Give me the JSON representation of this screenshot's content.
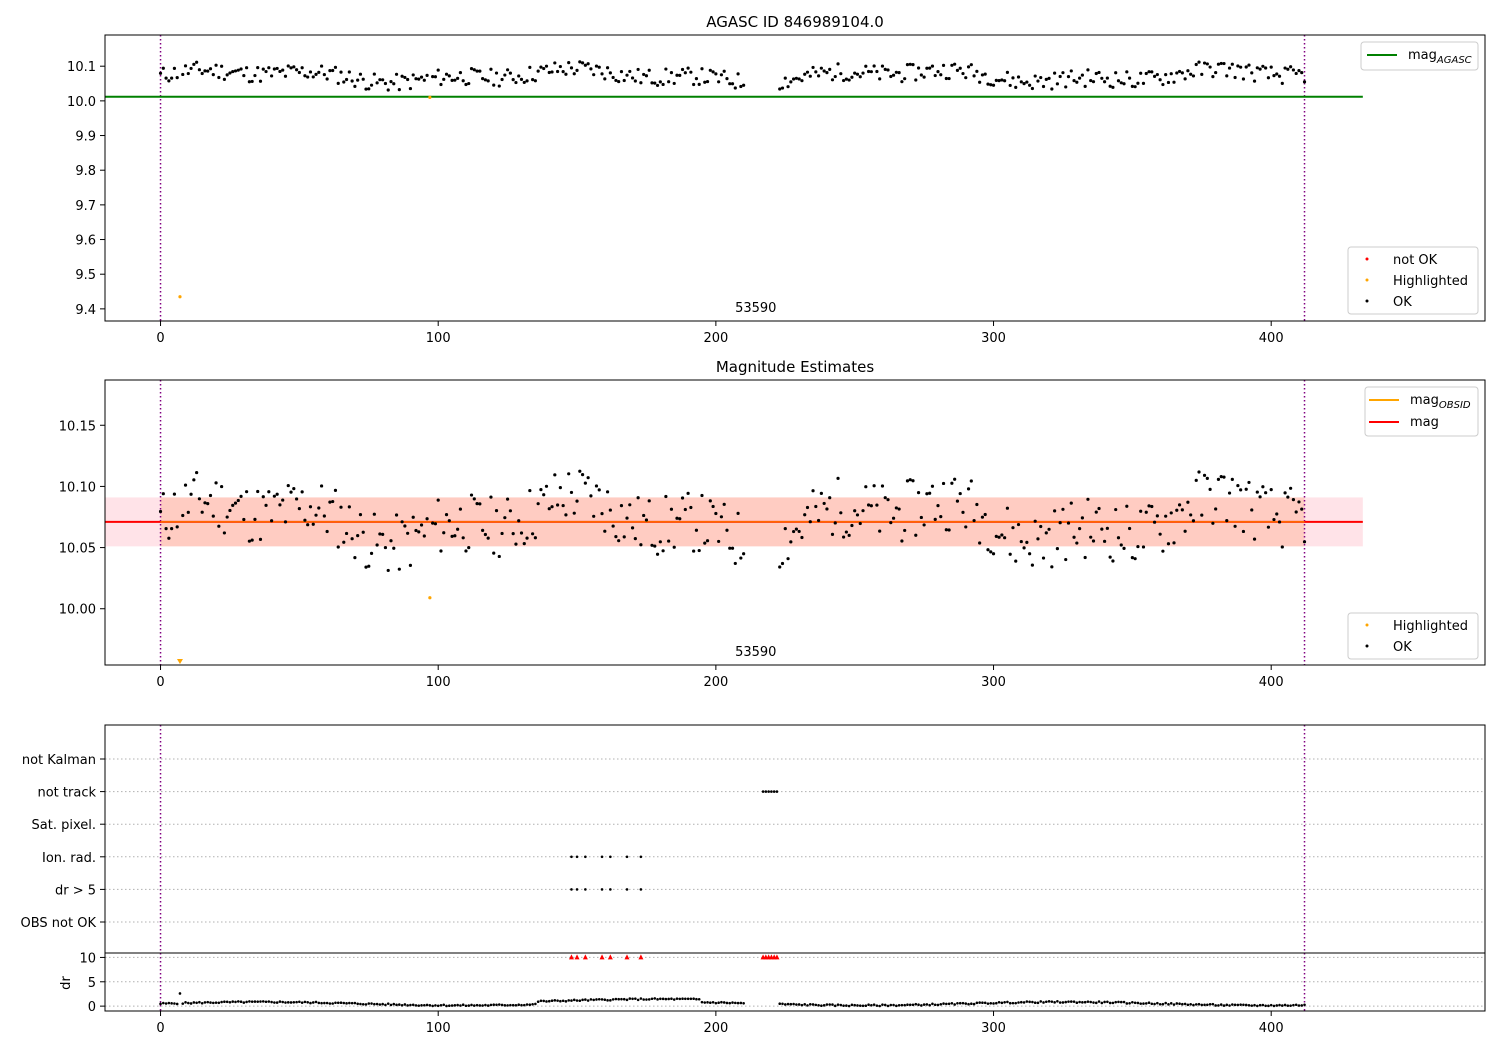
{
  "chart_data": [
    {
      "type": "scatter",
      "title": "AGASC ID 846989104.0",
      "xlim": [
        -20,
        477
      ],
      "ylim": [
        9.365,
        10.19
      ],
      "xticks": [
        0,
        100,
        200,
        300,
        400
      ],
      "yticks": [
        9.4,
        9.5,
        9.6,
        9.7,
        9.8,
        9.9,
        10.0,
        10.1
      ],
      "ytick_labels": [
        "9.4",
        "9.5",
        "9.6",
        "9.7",
        "9.8",
        "9.9",
        "10.0",
        "10.1"
      ],
      "vlines": [
        0,
        412
      ],
      "hline": {
        "name": "mag_AGASC",
        "value": 10.012,
        "xmax": 433,
        "color": "#008000"
      },
      "highlighted": [
        {
          "x": 7,
          "y": 9.435
        },
        {
          "x": 97,
          "y": 10.01
        }
      ],
      "center_annotation": {
        "text": "53590",
        "x": 205
      },
      "series_seed": 11,
      "legend_lines": [
        {
          "label": "mag",
          "sub": "AGASC",
          "color": "#008000"
        }
      ],
      "legend_points": [
        {
          "label": "not OK",
          "color": "#ff0000"
        },
        {
          "label": "Highlighted",
          "color": "#ffa500"
        },
        {
          "label": "OK",
          "color": "#000000"
        }
      ]
    },
    {
      "type": "scatter",
      "title": "Magnitude Estimates",
      "xlim": [
        -20,
        477
      ],
      "ylim": [
        9.954,
        10.187
      ],
      "xticks": [
        0,
        100,
        200,
        300,
        400
      ],
      "yticks": [
        10.0,
        10.05,
        10.1,
        10.15
      ],
      "ytick_labels": [
        "10.00",
        "10.05",
        "10.10",
        "10.15"
      ],
      "vlines": [
        0,
        412
      ],
      "mag": 10.071,
      "band_outer": [
        10.051,
        10.091
      ],
      "band_inner": [
        10.051,
        10.091
      ],
      "xmax": 433,
      "highlighted": [
        {
          "x": 97,
          "y": 10.009
        }
      ],
      "offscale_marker": {
        "x": 7
      },
      "center_annotation": {
        "text": "53590",
        "x": 205
      },
      "series_seed": 11,
      "legend_lines": [
        {
          "label": "mag",
          "sub": "OBSID",
          "color": "#ffa500"
        },
        {
          "label": "mag",
          "sub": "",
          "color": "#ff0000"
        }
      ],
      "legend_points": [
        {
          "label": "Highlighted",
          "color": "#ffa500"
        },
        {
          "label": "OK",
          "color": "#000000"
        }
      ]
    },
    {
      "type": "scatter",
      "title": "",
      "xlim": [
        -20,
        477
      ],
      "xticks": [
        0,
        100,
        200,
        300,
        400
      ],
      "vlines": [
        0,
        412
      ],
      "flag_rows": [
        "not Kalman",
        "not track",
        "Sat. pixel.",
        "Ion. rad.",
        "dr > 5",
        "OBS not OK"
      ],
      "flags": {
        "not Kalman": [],
        "not track": [
          217,
          218,
          219,
          220,
          221,
          222
        ],
        "Sat. pixel.": [],
        "Ion. rad.": [
          148,
          150,
          153,
          159,
          162,
          168,
          173
        ],
        "dr > 5": [
          148,
          150,
          153,
          159,
          162,
          168,
          173
        ],
        "OBS not OK": []
      },
      "dr_ylabel": "dr",
      "dr_yticks": [
        0,
        5,
        10
      ],
      "dr_ylim": [
        -1,
        10.5
      ],
      "dr_clipped": [
        148,
        150,
        153,
        159,
        162,
        168,
        173,
        217,
        218,
        219,
        220,
        221,
        222
      ],
      "dr_outlier": {
        "x": 7,
        "y": 2.6
      }
    }
  ]
}
